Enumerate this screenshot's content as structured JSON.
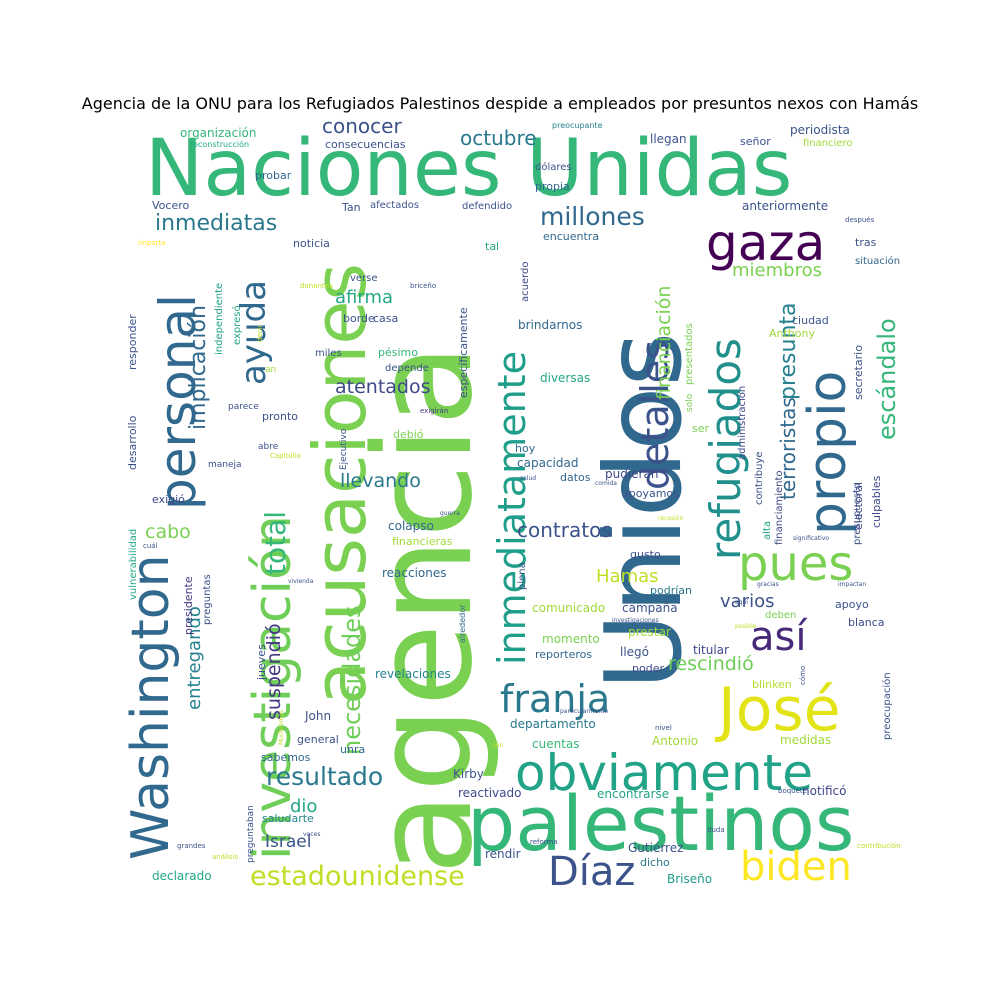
{
  "chart_data": {
    "type": "wordcloud",
    "title": "Agencia de la ONU para los Refugiados Palestinos despide a empleados por presuntos nexos con Hamás",
    "words": [
      {
        "text": "Naciones Unidas",
        "weight": 1.0,
        "color": "#35b779"
      },
      {
        "text": "agencia",
        "weight": 1.0,
        "color": "#7ad151"
      },
      {
        "text": "Unidos",
        "weight": 0.95,
        "color": "#31688e"
      },
      {
        "text": "acusaciones",
        "weight": 0.8,
        "color": "#7ad151"
      },
      {
        "text": "investigación",
        "weight": 0.75,
        "color": "#6ece58"
      },
      {
        "text": "palestinos",
        "weight": 0.72,
        "color": "#35b779"
      },
      {
        "text": "Washington",
        "weight": 0.62,
        "color": "#31688e"
      },
      {
        "text": "personal",
        "weight": 0.58,
        "color": "#31688e"
      },
      {
        "text": "obviamente",
        "weight": 0.58,
        "color": "#20a386"
      },
      {
        "text": "inmediatamente",
        "weight": 0.56,
        "color": "#1f9e89"
      },
      {
        "text": "refugiados",
        "weight": 0.55,
        "color": "#21908d"
      },
      {
        "text": "propio",
        "weight": 0.55,
        "color": "#31688e"
      },
      {
        "text": "José",
        "weight": 0.52,
        "color": "#e2e418"
      },
      {
        "text": "gaza",
        "weight": 0.48,
        "color": "#440154"
      },
      {
        "text": "detalles",
        "weight": 0.45,
        "color": "#3b528b"
      },
      {
        "text": "pues",
        "weight": 0.45,
        "color": "#7ad151"
      },
      {
        "text": "franja",
        "weight": 0.42,
        "color": "#2a788e"
      },
      {
        "text": "biden",
        "weight": 0.4,
        "color": "#fde725"
      },
      {
        "text": "Díaz",
        "weight": 0.38,
        "color": "#3b528b"
      },
      {
        "text": "así",
        "weight": 0.38,
        "color": "#482878"
      },
      {
        "text": "ayuda",
        "weight": 0.38,
        "color": "#31688e"
      },
      {
        "text": "estadounidense",
        "weight": 0.32,
        "color": "#bddf26"
      },
      {
        "text": "necesidades",
        "weight": 0.3,
        "color": "#6ece58"
      },
      {
        "text": "escándalo",
        "weight": 0.3,
        "color": "#35b779"
      },
      {
        "text": "resultado",
        "weight": 0.3,
        "color": "#2a788e"
      },
      {
        "text": "total",
        "weight": 0.3,
        "color": "#35b779"
      },
      {
        "text": "millones",
        "weight": 0.28,
        "color": "#31688e"
      },
      {
        "text": "inmediatas",
        "weight": 0.28,
        "color": "#2a788e"
      },
      {
        "text": "implicación",
        "weight": 0.25,
        "color": "#31688e"
      },
      {
        "text": "presunta",
        "weight": 0.24,
        "color": "#26828e"
      },
      {
        "text": "terroristas",
        "weight": 0.24,
        "color": "#31688e"
      },
      {
        "text": "financiación",
        "weight": 0.23,
        "color": "#7ad151"
      },
      {
        "text": "suspendió",
        "weight": 0.22,
        "color": "#443983"
      },
      {
        "text": "atentados",
        "weight": 0.22,
        "color": "#3e4989"
      },
      {
        "text": "llevando",
        "weight": 0.22,
        "color": "#2a788e"
      },
      {
        "text": "contratos",
        "weight": 0.22,
        "color": "#3b528b"
      },
      {
        "text": "rescindió",
        "weight": 0.22,
        "color": "#6ece58"
      },
      {
        "text": "entregando",
        "weight": 0.2,
        "color": "#26828e"
      },
      {
        "text": "conocer",
        "weight": 0.2,
        "color": "#3b528b"
      },
      {
        "text": "octubre",
        "weight": 0.2,
        "color": "#2a788e"
      },
      {
        "text": "miembros",
        "weight": 0.2,
        "color": "#7ad151"
      },
      {
        "text": "afirma",
        "weight": 0.2,
        "color": "#22a884"
      },
      {
        "text": "varios",
        "weight": 0.2,
        "color": "#3b528b"
      },
      {
        "text": "Hamas",
        "weight": 0.2,
        "color": "#bddf26"
      },
      {
        "text": "cabo",
        "weight": 0.2,
        "color": "#7ad151"
      },
      {
        "text": "dio",
        "weight": 0.18,
        "color": "#22a884"
      },
      {
        "text": "Israel",
        "weight": 0.18,
        "color": "#3b528b"
      },
      {
        "text": "reacciones",
        "weight": 0.14,
        "color": "#31688e"
      },
      {
        "text": "colapso",
        "weight": 0.14,
        "color": "#31688e"
      },
      {
        "text": "financieras",
        "weight": 0.12,
        "color": "#a0da39"
      },
      {
        "text": "revelaciones",
        "weight": 0.14,
        "color": "#26828e"
      },
      {
        "text": "departamento",
        "weight": 0.14,
        "color": "#2a788e"
      },
      {
        "text": "cuentas",
        "weight": 0.13,
        "color": "#35b779"
      },
      {
        "text": "Antonio",
        "weight": 0.14,
        "color": "#a0da39"
      },
      {
        "text": "medidas",
        "weight": 0.13,
        "color": "#a0da39"
      },
      {
        "text": "encontrarse",
        "weight": 0.14,
        "color": "#20a386"
      },
      {
        "text": "reactivado",
        "weight": 0.13,
        "color": "#3e4989"
      },
      {
        "text": "notificó",
        "weight": 0.13,
        "color": "#404688"
      },
      {
        "text": "saludarte",
        "weight": 0.12,
        "color": "#26828e"
      },
      {
        "text": "rendir",
        "weight": 0.12,
        "color": "#3b528b"
      },
      {
        "text": "Gutiérrez",
        "weight": 0.12,
        "color": "#3b528b"
      },
      {
        "text": "dicho",
        "weight": 0.11,
        "color": "#2a788e"
      },
      {
        "text": "Briseño",
        "weight": 0.12,
        "color": "#1f9e89"
      },
      {
        "text": "declarado",
        "weight": 0.12,
        "color": "#22a884"
      },
      {
        "text": "Kirby",
        "weight": 0.12,
        "color": "#3b528b"
      },
      {
        "text": "general",
        "weight": 0.11,
        "color": "#3b528b"
      },
      {
        "text": "John",
        "weight": 0.12,
        "color": "#3b528b"
      },
      {
        "text": "sabemos",
        "weight": 0.11,
        "color": "#31688e"
      },
      {
        "text": "unra",
        "weight": 0.11,
        "color": "#31688e"
      },
      {
        "text": "comunicado",
        "weight": 0.12,
        "color": "#a0da39"
      },
      {
        "text": "campaña",
        "weight": 0.12,
        "color": "#3b528b"
      },
      {
        "text": "prestar",
        "weight": 0.12,
        "color": "#a0da39"
      },
      {
        "text": "momento",
        "weight": 0.12,
        "color": "#7ad151"
      },
      {
        "text": "reporteros",
        "weight": 0.11,
        "color": "#31688e"
      },
      {
        "text": "llegó",
        "weight": 0.11,
        "color": "#3b528b"
      },
      {
        "text": "poder",
        "weight": 0.11,
        "color": "#3e4989"
      },
      {
        "text": "titular",
        "weight": 0.12,
        "color": "#3e4989"
      },
      {
        "text": "blinken",
        "weight": 0.11,
        "color": "#b5de2b"
      },
      {
        "text": "pudieran",
        "weight": 0.12,
        "color": "#3e4989"
      },
      {
        "text": "podrían",
        "weight": 0.11,
        "color": "#2a788e"
      },
      {
        "text": "gusto",
        "weight": 0.11,
        "color": "#3b528b"
      },
      {
        "text": "apoyo",
        "weight": 0.11,
        "color": "#3b528b"
      },
      {
        "text": "deben",
        "weight": 0.1,
        "color": "#7ad151"
      },
      {
        "text": "blanca",
        "weight": 0.11,
        "color": "#3e4989"
      },
      {
        "text": "capacidad",
        "weight": 0.12,
        "color": "#31688e"
      },
      {
        "text": "datos",
        "weight": 0.11,
        "color": "#31688e"
      },
      {
        "text": "hoy",
        "weight": 0.11,
        "color": "#31688e"
      },
      {
        "text": "debió",
        "weight": 0.11,
        "color": "#7ad151"
      },
      {
        "text": "diversas",
        "weight": 0.12,
        "color": "#22a884"
      },
      {
        "text": "brindarnos",
        "weight": 0.12,
        "color": "#31688e"
      },
      {
        "text": "pronto",
        "weight": 0.11,
        "color": "#3b528b"
      },
      {
        "text": "exigió",
        "weight": 0.11,
        "color": "#3e4989"
      },
      {
        "text": "presidente",
        "weight": 0.11,
        "color": "#443983"
      },
      {
        "text": "preguntas",
        "weight": 0.1,
        "color": "#3b528b"
      },
      {
        "text": "jueves",
        "weight": 0.11,
        "color": "#3b528b"
      },
      {
        "text": "noticia",
        "weight": 0.11,
        "color": "#3b528b"
      },
      {
        "text": "borde",
        "weight": 0.11,
        "color": "#3b528b"
      },
      {
        "text": "casa",
        "weight": 0.11,
        "color": "#3b528b"
      },
      {
        "text": "pésimo",
        "weight": 0.11,
        "color": "#35b779"
      },
      {
        "text": "depende",
        "weight": 0.1,
        "color": "#3b528b"
      },
      {
        "text": "miles",
        "weight": 0.1,
        "color": "#3b528b"
      },
      {
        "text": "tal",
        "weight": 0.1,
        "color": "#22a884"
      },
      {
        "text": "encuentra",
        "weight": 0.11,
        "color": "#31688e"
      },
      {
        "text": "propia",
        "weight": 0.11,
        "color": "#31688e"
      },
      {
        "text": "dólares",
        "weight": 0.1,
        "color": "#3b528b"
      },
      {
        "text": "llegan",
        "weight": 0.12,
        "color": "#3b528b"
      },
      {
        "text": "señor",
        "weight": 0.11,
        "color": "#3b528b"
      },
      {
        "text": "periodista",
        "weight": 0.11,
        "color": "#3b528b"
      },
      {
        "text": "financiero",
        "weight": 0.1,
        "color": "#a0da39"
      },
      {
        "text": "anteriormente",
        "weight": 0.12,
        "color": "#3b528b"
      },
      {
        "text": "ciudad",
        "weight": 0.11,
        "color": "#3b528b"
      },
      {
        "text": "Anthony",
        "weight": 0.11,
        "color": "#a0da39"
      },
      {
        "text": "tras",
        "weight": 0.11,
        "color": "#3b528b"
      },
      {
        "text": "situación",
        "weight": 0.1,
        "color": "#31688e"
      },
      {
        "text": "secretario",
        "weight": 0.11,
        "color": "#3b528b"
      },
      {
        "text": "culpables",
        "weight": 0.11,
        "color": "#3e4989"
      },
      {
        "text": "electoral",
        "weight": 0.11,
        "color": "#3e4989"
      },
      {
        "text": "presupuesto",
        "weight": 0.1,
        "color": "#3b528b"
      },
      {
        "text": "financiamiento",
        "weight": 0.1,
        "color": "#3e4989"
      },
      {
        "text": "administración",
        "weight": 0.1,
        "color": "#3e4989"
      },
      {
        "text": "contribuye",
        "weight": 0.1,
        "color": "#3b528b"
      },
      {
        "text": "alta",
        "weight": 0.1,
        "color": "#20a386"
      },
      {
        "text": "apoyamos",
        "weight": 0.11,
        "color": "#3b528b"
      },
      {
        "text": "ser",
        "weight": 0.11,
        "color": "#7ad151"
      },
      {
        "text": "solo",
        "weight": 0.09,
        "color": "#7ad151"
      },
      {
        "text": "presentados",
        "weight": 0.1,
        "color": "#7ad151"
      },
      {
        "text": "acuerdo",
        "weight": 0.1,
        "color": "#3e4989"
      },
      {
        "text": "específicamente",
        "weight": 0.11,
        "color": "#3b528b"
      },
      {
        "text": "defendido",
        "weight": 0.1,
        "color": "#3b528b"
      },
      {
        "text": "afectados",
        "weight": 0.1,
        "color": "#3b528b"
      },
      {
        "text": "Tan",
        "weight": 0.11,
        "color": "#3b528b"
      },
      {
        "text": "consecuencias",
        "weight": 0.11,
        "color": "#3b528b"
      },
      {
        "text": "organización",
        "weight": 0.12,
        "color": "#35b779"
      },
      {
        "text": "reconstrucción",
        "weight": 0.08,
        "color": "#22a884"
      },
      {
        "text": "preocupante",
        "weight": 0.08,
        "color": "#26828e"
      },
      {
        "text": "probar",
        "weight": 0.11,
        "color": "#31688e"
      },
      {
        "text": "Vocero",
        "weight": 0.11,
        "color": "#3b528b"
      },
      {
        "text": "importa",
        "weight": 0.07,
        "color": "#fde725"
      },
      {
        "text": "responder",
        "weight": 0.11,
        "color": "#3b528b"
      },
      {
        "text": "desarrollo",
        "weight": 0.11,
        "color": "#3b528b"
      },
      {
        "text": "vulnerabilidad",
        "weight": 0.1,
        "color": "#22a884"
      },
      {
        "text": "independiente",
        "weight": 0.1,
        "color": "#20a386"
      },
      {
        "text": "expresó",
        "weight": 0.1,
        "color": "#22a884"
      },
      {
        "text": "decir",
        "weight": 0.07,
        "color": "#bddf26"
      },
      {
        "text": "donantes",
        "weight": 0.07,
        "color": "#bddf26"
      },
      {
        "text": "verse",
        "weight": 0.1,
        "color": "#3b528b"
      },
      {
        "text": "briceño",
        "weight": 0.07,
        "color": "#3b528b"
      },
      {
        "text": "an",
        "weight": 0.09,
        "color": "#a0da39"
      },
      {
        "text": "parece",
        "weight": 0.09,
        "color": "#3b528b"
      },
      {
        "text": "abre",
        "weight": 0.09,
        "color": "#3b528b"
      },
      {
        "text": "Capitolio",
        "weight": 0.07,
        "color": "#bddf26"
      },
      {
        "text": "maneja",
        "weight": 0.09,
        "color": "#3b528b"
      },
      {
        "text": "Ejecutivo",
        "weight": 0.09,
        "color": "#3b528b"
      },
      {
        "text": "exigirán",
        "weight": 0.07,
        "color": "#443983"
      },
      {
        "text": "comida",
        "weight": 0.06,
        "color": "#3b528b"
      },
      {
        "text": "salud",
        "weight": 0.06,
        "color": "#3b528b"
      },
      {
        "text": "guerra",
        "weight": 0.06,
        "color": "#3b528b"
      },
      {
        "text": "recesión",
        "weight": 0.06,
        "color": "#bddf26"
      },
      {
        "text": "significativo",
        "weight": 0.06,
        "color": "#3b528b"
      },
      {
        "text": "cuál",
        "weight": 0.07,
        "color": "#3b528b"
      },
      {
        "text": "vivienda",
        "weight": 0.06,
        "color": "#3b528b"
      },
      {
        "text": "gracias",
        "weight": 0.06,
        "color": "#3b528b"
      },
      {
        "text": "impactan",
        "weight": 0.06,
        "color": "#3b528b"
      },
      {
        "text": "aquí",
        "weight": 0.06,
        "color": "#3b528b"
      },
      {
        "text": "investigaciones",
        "weight": 0.06,
        "color": "#3b528b"
      },
      {
        "text": "posible",
        "weight": 0.06,
        "color": "#bddf26"
      },
      {
        "text": "cómo",
        "weight": 0.07,
        "color": "#3b528b"
      },
      {
        "text": "preocupación",
        "weight": 0.1,
        "color": "#3b528b"
      },
      {
        "text": "particularmente",
        "weight": 0.06,
        "color": "#3b528b"
      },
      {
        "text": "nivel",
        "weight": 0.07,
        "color": "#3b528b"
      },
      {
        "text": "aún",
        "weight": 0.06,
        "color": "#bddf26"
      },
      {
        "text": "Muchísimas",
        "weight": 0.06,
        "color": "#bddf26"
      },
      {
        "text": "alrededor",
        "weight": 0.08,
        "color": "#31688e"
      },
      {
        "text": "plena",
        "weight": 0.1,
        "color": "#3b528b"
      },
      {
        "text": "preguntaban",
        "weight": 0.09,
        "color": "#3b528b"
      },
      {
        "text": "boquete",
        "weight": 0.07,
        "color": "#3b528b"
      },
      {
        "text": "reforma",
        "weight": 0.07,
        "color": "#3b528b"
      },
      {
        "text": "duda",
        "weight": 0.07,
        "color": "#3b528b"
      },
      {
        "text": "voces",
        "weight": 0.06,
        "color": "#3b528b"
      },
      {
        "text": "grandes",
        "weight": 0.07,
        "color": "#3b528b"
      },
      {
        "text": "análisis",
        "weight": 0.07,
        "color": "#bddf26"
      },
      {
        "text": "contribución",
        "weight": 0.07,
        "color": "#bddf26"
      },
      {
        "text": "después",
        "weight": 0.07,
        "color": "#3b528b"
      }
    ]
  }
}
